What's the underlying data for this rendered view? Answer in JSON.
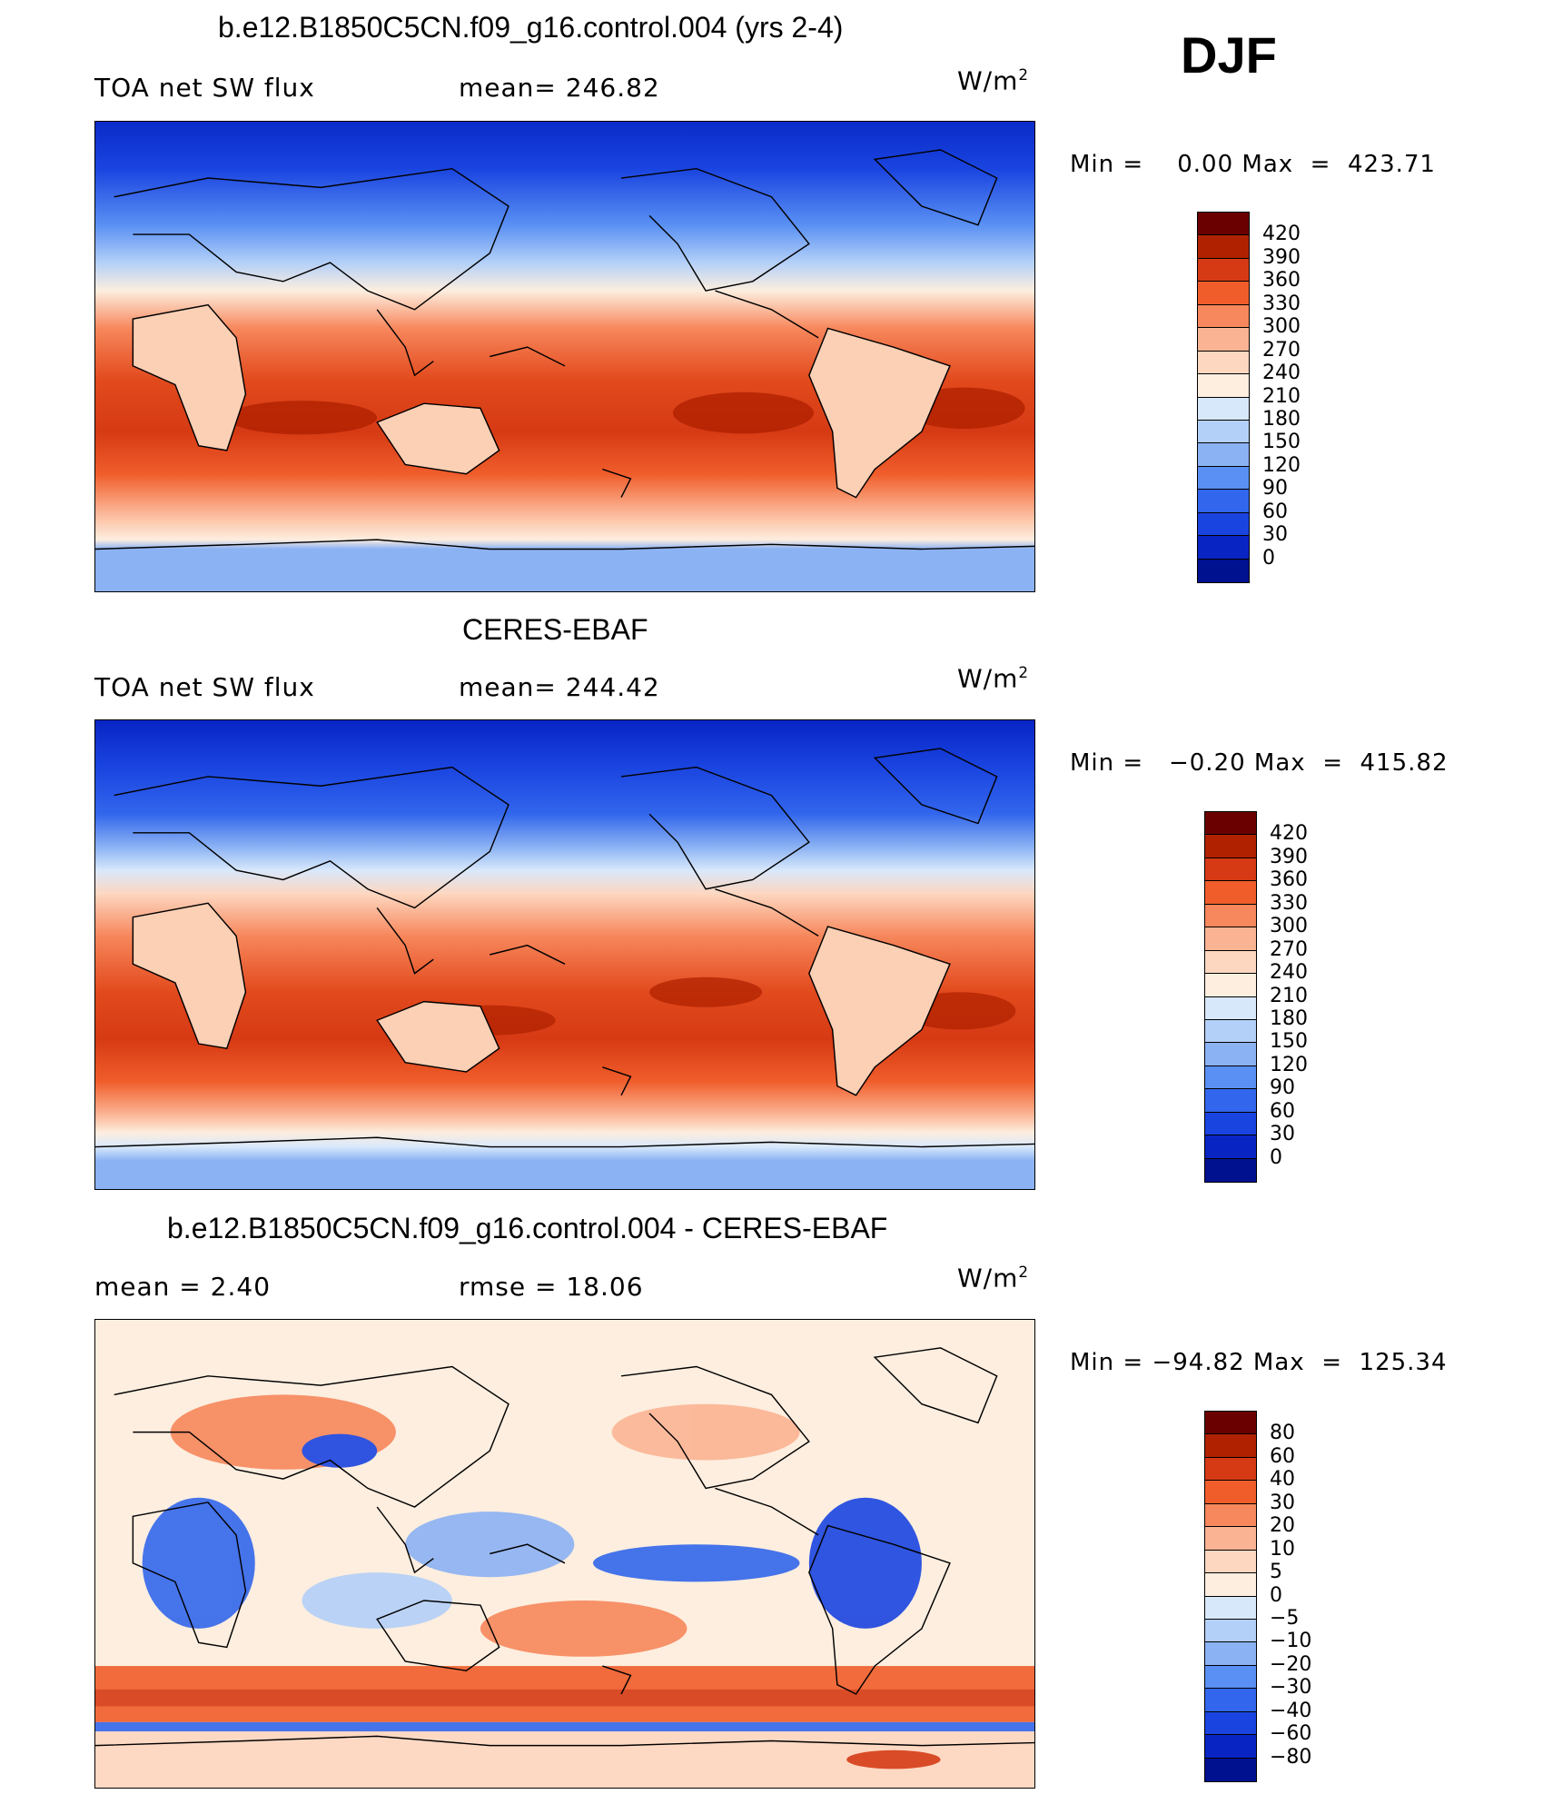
{
  "season": "DJF",
  "panels": [
    {
      "id": "model",
      "title": "b.e12.B1850C5CN.f09_g16.control.004 (yrs 2-4)",
      "left_label": "TOA net SW flux",
      "mid_label": "mean=  246.82",
      "units": "W/m",
      "units_sup": "2",
      "minmax": "Min =    0.00 Max  =  423.71",
      "colorbar": {
        "colors": [
          "#6a0000",
          "#b02100",
          "#d63a14",
          "#f05d2b",
          "#f7875c",
          "#fbb493",
          "#fdd7c0",
          "#fdeedf",
          "#d8e8fb",
          "#b3d0f8",
          "#8bb2f3",
          "#5a90f3",
          "#3266ec",
          "#1a44e0",
          "#0825c4",
          "#00118f"
        ],
        "ticks": [
          "420",
          "390",
          "360",
          "330",
          "300",
          "270",
          "240",
          "210",
          "180",
          "150",
          "120",
          "90",
          "60",
          "30",
          "0"
        ]
      }
    },
    {
      "id": "obs",
      "title": "CERES-EBAF",
      "left_label": "TOA net SW flux",
      "mid_label": "mean=  244.42",
      "units": "W/m",
      "units_sup": "2",
      "minmax": "Min =   −0.20 Max  =  415.82",
      "colorbar": {
        "colors": [
          "#6a0000",
          "#b02100",
          "#d63a14",
          "#f05d2b",
          "#f7875c",
          "#fbb493",
          "#fdd7c0",
          "#fdeedf",
          "#d8e8fb",
          "#b3d0f8",
          "#8bb2f3",
          "#5a90f3",
          "#3266ec",
          "#1a44e0",
          "#0825c4",
          "#00118f"
        ],
        "ticks": [
          "420",
          "390",
          "360",
          "330",
          "300",
          "270",
          "240",
          "210",
          "180",
          "150",
          "120",
          "90",
          "60",
          "30",
          "0"
        ]
      }
    },
    {
      "id": "diff",
      "title": "b.e12.B1850C5CN.f09_g16.control.004 - CERES-EBAF",
      "left_label": "mean =     2.40",
      "mid_label": "rmse =    18.06",
      "units": "W/m",
      "units_sup": "2",
      "minmax": "Min = −94.82 Max  =  125.34",
      "colorbar": {
        "colors": [
          "#6a0000",
          "#b02100",
          "#d63a14",
          "#f05d2b",
          "#f7875c",
          "#fbb493",
          "#fdd7c0",
          "#fdeedf",
          "#d8e8fb",
          "#b3d0f8",
          "#8bb2f3",
          "#5a90f3",
          "#3266ec",
          "#1a44e0",
          "#0825c4",
          "#00118f"
        ],
        "ticks": [
          "80",
          "60",
          "40",
          "30",
          "20",
          "10",
          "5",
          "0",
          "−5",
          "−10",
          "−20",
          "−30",
          "−40",
          "−60",
          "−80"
        ]
      }
    }
  ]
}
